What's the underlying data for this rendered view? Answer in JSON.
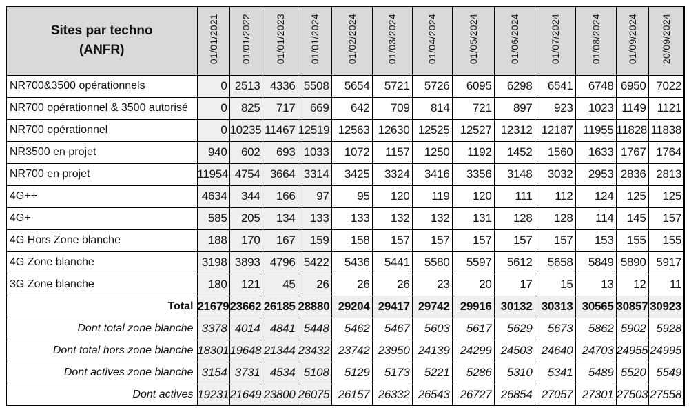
{
  "colors": {
    "header_bg": "#d9d9d9",
    "shaded_col_bg": "#efefef",
    "border": "#000000",
    "text": "#111111"
  },
  "chart_data": {
    "type": "table",
    "title": "Sites par techno\n(ANFR)",
    "columns": [
      "01/01/2021",
      "01/01/2022",
      "01/01/2023",
      "01/01/2024",
      "01/02/2024",
      "01/03/2024",
      "01/04/2024",
      "01/05/2024",
      "01/06/2024",
      "01/07/2024",
      "01/08/2024",
      "01/09/2024",
      "20/09/2024"
    ],
    "series": [
      {
        "name": "NR700&3500 opérationnels",
        "values": [
          0,
          2513,
          4336,
          5508,
          5654,
          5721,
          5726,
          6095,
          6298,
          6541,
          6748,
          6950,
          7022
        ]
      },
      {
        "name": "NR700 opérationnel & 3500 autorisé",
        "values": [
          0,
          825,
          717,
          669,
          642,
          709,
          814,
          721,
          897,
          923,
          1023,
          1149,
          1121
        ]
      },
      {
        "name": "NR700 opérationnel",
        "values": [
          0,
          10235,
          11467,
          12519,
          12563,
          12630,
          12525,
          12527,
          12312,
          12187,
          11955,
          11828,
          11838
        ]
      },
      {
        "name": "NR3500 en projet",
        "values": [
          940,
          602,
          693,
          1033,
          1072,
          1157,
          1250,
          1192,
          1452,
          1560,
          1633,
          1767,
          1764
        ]
      },
      {
        "name": "NR700 en projet",
        "values": [
          11954,
          4754,
          3664,
          3314,
          3425,
          3324,
          3416,
          3356,
          3148,
          3032,
          2953,
          2836,
          2813
        ]
      },
      {
        "name": "4G++",
        "values": [
          4634,
          344,
          166,
          97,
          95,
          120,
          119,
          120,
          111,
          112,
          124,
          125,
          125
        ]
      },
      {
        "name": "4G+",
        "values": [
          585,
          205,
          134,
          133,
          133,
          132,
          132,
          131,
          128,
          128,
          114,
          145,
          157
        ]
      },
      {
        "name": "4G Hors Zone blanche",
        "values": [
          188,
          170,
          167,
          159,
          158,
          157,
          157,
          157,
          157,
          157,
          153,
          155,
          155
        ]
      },
      {
        "name": "4G Zone blanche",
        "values": [
          3198,
          3893,
          4796,
          5422,
          5436,
          5441,
          5580,
          5597,
          5612,
          5658,
          5849,
          5890,
          5917
        ]
      },
      {
        "name": "3G Zone blanche",
        "values": [
          180,
          121,
          45,
          26,
          26,
          26,
          23,
          20,
          17,
          15,
          13,
          12,
          11
        ]
      }
    ],
    "total": {
      "name": "Total",
      "values": [
        21679,
        23662,
        26185,
        28880,
        29204,
        29417,
        29742,
        29916,
        30132,
        30313,
        30565,
        30857,
        30923
      ]
    },
    "summary": [
      {
        "name": "Dont total zone blanche",
        "values": [
          3378,
          4014,
          4841,
          5448,
          5462,
          5467,
          5603,
          5617,
          5629,
          5673,
          5862,
          5902,
          5928
        ]
      },
      {
        "name": "Dont total hors zone blanche",
        "values": [
          18301,
          19648,
          21344,
          23432,
          23742,
          23950,
          24139,
          24299,
          24503,
          24640,
          24703,
          24955,
          24995
        ]
      },
      {
        "name": "Dont actives zone blanche",
        "values": [
          3154,
          3731,
          4534,
          5108,
          5129,
          5173,
          5221,
          5286,
          5310,
          5341,
          5489,
          5520,
          5549
        ]
      },
      {
        "name": "Dont actives",
        "values": [
          19231,
          21649,
          23800,
          26075,
          26157,
          26332,
          26543,
          26727,
          26854,
          27057,
          27301,
          27503,
          27558
        ]
      }
    ]
  }
}
